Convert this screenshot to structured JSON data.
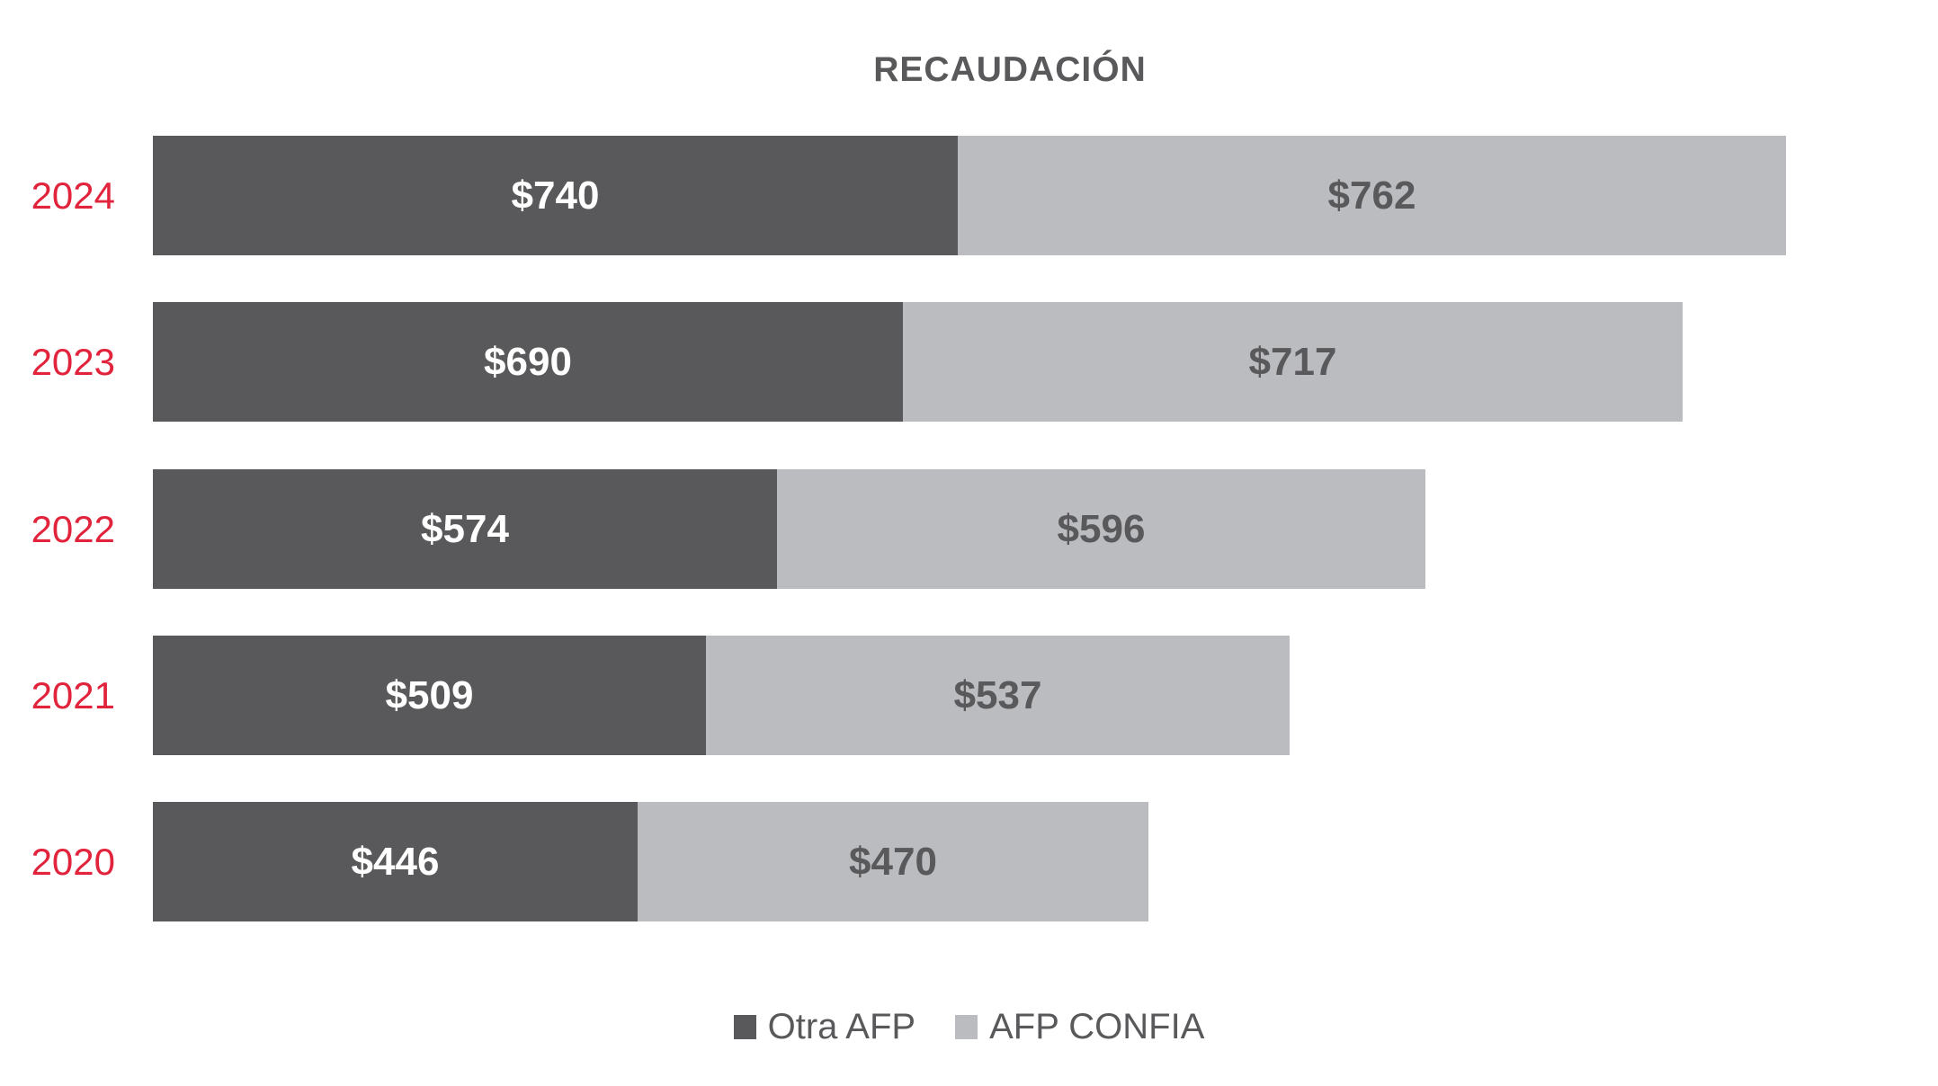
{
  "title": "RECAUDACIÓN",
  "colors": {
    "dark": "#59595B",
    "light": "#BBBCBF",
    "red": "#E2233C",
    "text_light": "#FFFFFF",
    "text_dark": "#59595B"
  },
  "legend": {
    "items": [
      {
        "label": "Otra AFP",
        "color": "#59595B"
      },
      {
        "label": "AFP CONFIA",
        "color": "#BBBCBF"
      }
    ],
    "position": "bottom"
  },
  "chart_data": {
    "type": "bar",
    "orientation": "horizontal",
    "stacked": true,
    "title": "RECAUDACIÓN",
    "categories": [
      "2024",
      "2023",
      "2022",
      "2021",
      "2020"
    ],
    "series": [
      {
        "name": "Otra AFP",
        "color": "#59595B",
        "values": [
          740,
          690,
          574,
          509,
          446
        ],
        "labels": [
          "$740",
          "$690",
          "$574",
          "$509",
          "$446"
        ]
      },
      {
        "name": "AFP CONFIA",
        "color": "#BBBCBF",
        "values": [
          762,
          717,
          596,
          537,
          470
        ],
        "labels": [
          "$762",
          "$717",
          "$596",
          "$537",
          "$470"
        ]
      }
    ],
    "totals": [
      1502,
      1407,
      1170,
      1046,
      916
    ],
    "xlim": [
      0,
      1600
    ],
    "grid": false,
    "category_label_color": "#E2233C",
    "legend_position": "bottom"
  }
}
